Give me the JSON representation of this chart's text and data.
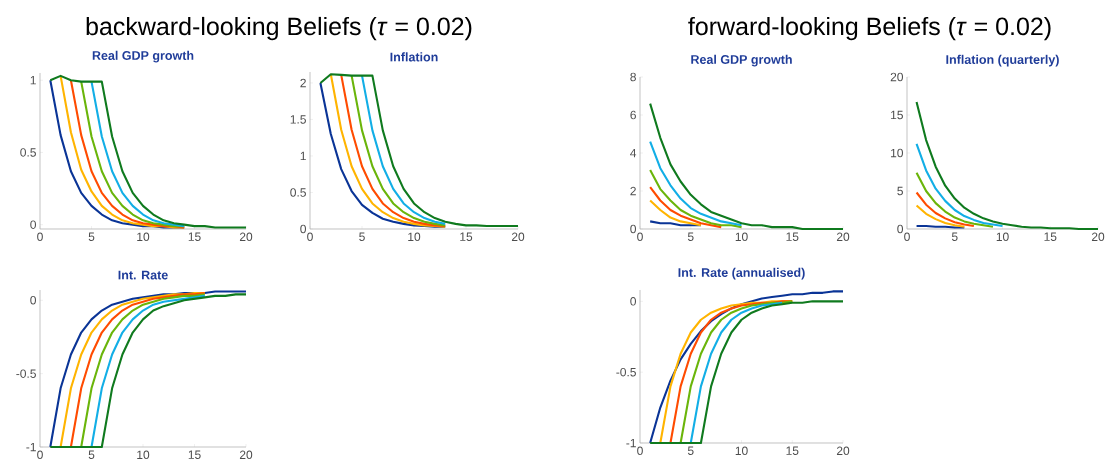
{
  "chart_data": [
    {
      "type": "line",
      "title": "Real GDP growth",
      "annotations": [
        "backward-looking Beliefs (*τ* = 0.02)"
      ],
      "x": [
        1,
        2,
        3,
        4,
        5,
        6,
        7,
        8,
        9,
        10,
        11,
        12,
        13,
        14,
        15,
        16,
        17,
        18,
        19,
        20
      ],
      "xlim": [
        0,
        20
      ],
      "xticks": [
        0,
        5,
        10,
        15,
        20
      ],
      "ylim": [
        -0.03,
        1.05
      ],
      "yticks": [
        0,
        0.5,
        1
      ],
      "series": [
        {
          "color": "#0a3496",
          "values": [
            1,
            0.62,
            0.37,
            0.22,
            0.13,
            0.07,
            0.03,
            0.01,
            0,
            -0.01,
            -0.01,
            -0.02,
            -0.02,
            -0.02,
            null,
            null,
            null,
            null,
            null,
            null
          ]
        },
        {
          "color": "#ffb400",
          "values": [
            null,
            1.03,
            0.64,
            0.38,
            0.23,
            0.13,
            0.07,
            0.03,
            0.01,
            0,
            -0.01,
            -0.01,
            -0.02,
            -0.02,
            null,
            null,
            null,
            null,
            null,
            null
          ]
        },
        {
          "color": "#ff4b00",
          "values": [
            null,
            null,
            1,
            0.62,
            0.37,
            0.22,
            0.13,
            0.07,
            0.03,
            0.01,
            0,
            -0.01,
            -0.01,
            -0.02,
            null,
            null,
            null,
            null,
            null,
            null
          ]
        },
        {
          "color": "#6ab50a",
          "values": [
            null,
            null,
            null,
            0.99,
            0.61,
            0.37,
            0.22,
            0.13,
            0.07,
            0.03,
            0.01,
            0,
            -0.01,
            -0.01,
            null,
            null,
            null,
            null,
            null,
            null
          ]
        },
        {
          "color": "#12aee6",
          "values": [
            null,
            null,
            null,
            null,
            0.99,
            0.61,
            0.37,
            0.22,
            0.13,
            0.07,
            0.03,
            0.01,
            0,
            -0.01,
            null,
            null,
            null,
            null,
            null,
            null
          ]
        },
        {
          "color": "#0f7a1e",
          "values": [
            1,
            1.03,
            1,
            0.99,
            0.99,
            0.99,
            0.61,
            0.37,
            0.22,
            0.13,
            0.07,
            0.03,
            0.01,
            0,
            -0.01,
            -0.01,
            -0.02,
            -0.02,
            -0.02,
            -0.02
          ]
        }
      ]
    },
    {
      "type": "line",
      "title": "Inflation",
      "x": [
        1,
        2,
        3,
        4,
        5,
        6,
        7,
        8,
        9,
        10,
        11,
        12,
        13,
        14,
        15,
        16,
        17,
        18,
        19,
        20
      ],
      "xlim": [
        0,
        20
      ],
      "xticks": [
        0,
        5,
        10,
        15,
        20
      ],
      "ylim": [
        0,
        2.15
      ],
      "yticks": [
        0,
        0.5,
        1,
        1.5,
        2
      ],
      "series": [
        {
          "color": "#0a3496",
          "values": [
            2,
            1.3,
            0.82,
            0.52,
            0.33,
            0.22,
            0.14,
            0.1,
            0.07,
            0.05,
            0.04,
            0.03,
            0.03,
            null,
            null,
            null,
            null,
            null,
            null,
            null
          ]
        },
        {
          "color": "#ffb400",
          "values": [
            null,
            2.12,
            1.36,
            0.86,
            0.55,
            0.35,
            0.23,
            0.15,
            0.1,
            0.07,
            0.05,
            0.04,
            0.03,
            null,
            null,
            null,
            null,
            null,
            null,
            null
          ]
        },
        {
          "color": "#ff4b00",
          "values": [
            null,
            null,
            2.11,
            1.36,
            0.86,
            0.55,
            0.35,
            0.23,
            0.15,
            0.1,
            0.07,
            0.05,
            0.04,
            null,
            null,
            null,
            null,
            null,
            null,
            null
          ]
        },
        {
          "color": "#6ab50a",
          "values": [
            null,
            null,
            null,
            2.1,
            1.35,
            0.86,
            0.55,
            0.35,
            0.23,
            0.15,
            0.1,
            0.07,
            0.05,
            null,
            null,
            null,
            null,
            null,
            null,
            null
          ]
        },
        {
          "color": "#12aee6",
          "values": [
            null,
            null,
            null,
            null,
            2.1,
            1.35,
            0.86,
            0.55,
            0.35,
            0.23,
            0.15,
            0.1,
            0.07,
            null,
            null,
            null,
            null,
            null,
            null,
            null
          ]
        },
        {
          "color": "#0f7a1e",
          "values": [
            2,
            2.12,
            2.11,
            2.1,
            2.1,
            2.1,
            1.35,
            0.86,
            0.55,
            0.35,
            0.23,
            0.15,
            0.1,
            0.07,
            0.05,
            0.05,
            0.04,
            0.04,
            0.04,
            0.04
          ]
        }
      ]
    },
    {
      "type": "line",
      "title": "Int. Rate",
      "x": [
        1,
        2,
        3,
        4,
        5,
        6,
        7,
        8,
        9,
        10,
        11,
        12,
        13,
        14,
        15,
        16,
        17,
        18,
        19,
        20
      ],
      "xlim": [
        0,
        20
      ],
      "xticks": [
        0,
        5,
        10,
        15,
        20
      ],
      "ylim": [
        -1,
        0.07
      ],
      "yticks": [
        -1,
        -0.5,
        0
      ],
      "series": [
        {
          "color": "#0a3496",
          "values": [
            -1,
            -0.6,
            -0.37,
            -0.22,
            -0.13,
            -0.07,
            -0.03,
            -0.01,
            0.01,
            0.02,
            0.03,
            0.04,
            0.04,
            0.05,
            0.05,
            0.05,
            0.06,
            0.06,
            0.06,
            0.06
          ]
        },
        {
          "color": "#ffb400",
          "values": [
            null,
            -1,
            -0.6,
            -0.37,
            -0.22,
            -0.13,
            -0.07,
            -0.03,
            -0.01,
            0.01,
            0.02,
            0.03,
            0.04,
            0.04,
            0.05,
            0.05,
            null,
            null,
            null,
            null
          ]
        },
        {
          "color": "#ff4b00",
          "values": [
            null,
            null,
            -1,
            -0.6,
            -0.37,
            -0.22,
            -0.13,
            -0.07,
            -0.03,
            -0.01,
            0.01,
            0.02,
            0.03,
            0.04,
            0.04,
            0.05,
            null,
            null,
            null,
            null
          ]
        },
        {
          "color": "#6ab50a",
          "values": [
            null,
            null,
            null,
            -1,
            -0.6,
            -0.37,
            -0.22,
            -0.13,
            -0.07,
            -0.03,
            -0.01,
            0.01,
            0.02,
            0.03,
            0.03,
            0.04,
            null,
            null,
            null,
            null
          ]
        },
        {
          "color": "#12aee6",
          "values": [
            null,
            null,
            null,
            null,
            -1,
            -0.6,
            -0.37,
            -0.22,
            -0.13,
            -0.07,
            -0.03,
            -0.01,
            0,
            0.01,
            0.02,
            0.03,
            null,
            null,
            null,
            null
          ]
        },
        {
          "color": "#0f7a1e",
          "values": [
            -1,
            -1,
            -1,
            -1,
            -1,
            -1,
            -0.6,
            -0.37,
            -0.22,
            -0.13,
            -0.07,
            -0.04,
            -0.02,
            0,
            0.01,
            0.02,
            0.03,
            0.03,
            0.04,
            0.04
          ]
        }
      ]
    },
    {
      "type": "line",
      "title": "Real GDP growth",
      "annotations": [
        "forward-looking Beliefs (*τ* = 0.02)"
      ],
      "x": [
        1,
        2,
        3,
        4,
        5,
        6,
        7,
        8,
        9,
        10,
        11,
        12,
        13,
        14,
        15,
        16,
        17,
        18,
        19,
        20
      ],
      "xlim": [
        0,
        20
      ],
      "xticks": [
        0,
        5,
        10,
        15,
        20
      ],
      "ylim": [
        0,
        8
      ],
      "yticks": [
        0,
        2,
        4,
        6,
        8
      ],
      "series": [
        {
          "color": "#0a3496",
          "values": [
            0.4,
            0.3,
            0.3,
            0.2,
            0.2,
            0.2,
            null,
            null,
            null,
            null,
            null,
            null,
            null,
            null,
            null,
            null,
            null,
            null,
            null,
            null
          ]
        },
        {
          "color": "#ffb400",
          "values": [
            1.5,
            1,
            0.6,
            0.4,
            0.3,
            0.2,
            null,
            null,
            null,
            null,
            null,
            null,
            null,
            null,
            null,
            null,
            null,
            null,
            null,
            null
          ]
        },
        {
          "color": "#ff4b00",
          "values": [
            2.2,
            1.5,
            1,
            0.7,
            0.5,
            0.3,
            0.2,
            0.1,
            null,
            null,
            null,
            null,
            null,
            null,
            null,
            null,
            null,
            null,
            null,
            null
          ]
        },
        {
          "color": "#6ab50a",
          "values": [
            3.1,
            2.1,
            1.5,
            1,
            0.7,
            0.5,
            0.3,
            0.2,
            0.2,
            0.1,
            null,
            null,
            null,
            null,
            null,
            null,
            null,
            null,
            null,
            null
          ]
        },
        {
          "color": "#12aee6",
          "values": [
            4.6,
            3.2,
            2.3,
            1.6,
            1.1,
            0.8,
            0.6,
            0.4,
            0.3,
            0.2,
            null,
            null,
            null,
            null,
            null,
            null,
            null,
            null,
            null,
            null
          ]
        },
        {
          "color": "#0f7a1e",
          "values": [
            6.6,
            4.8,
            3.4,
            2.5,
            1.8,
            1.3,
            0.9,
            0.7,
            0.5,
            0.3,
            0.2,
            0.2,
            0.1,
            0.1,
            0.1,
            0,
            0,
            0,
            0,
            0
          ]
        }
      ]
    },
    {
      "type": "line",
      "title": "Inflation (quarterly)",
      "x": [
        1,
        2,
        3,
        4,
        5,
        6,
        7,
        8,
        9,
        10,
        11,
        12,
        13,
        14,
        15,
        16,
        17,
        18,
        19,
        20
      ],
      "xlim": [
        0,
        20
      ],
      "xticks": [
        0,
        5,
        10,
        15,
        20
      ],
      "ylim": [
        0,
        20
      ],
      "yticks": [
        0,
        5,
        10,
        15,
        20
      ],
      "series": [
        {
          "color": "#0a3496",
          "values": [
            0.4,
            0.4,
            0.3,
            0.3,
            0.2,
            0.2,
            null,
            null,
            null,
            null,
            null,
            null,
            null,
            null,
            null,
            null,
            null,
            null,
            null,
            null
          ]
        },
        {
          "color": "#ffb400",
          "values": [
            3.1,
            2,
            1.3,
            0.8,
            0.5,
            0.3,
            null,
            null,
            null,
            null,
            null,
            null,
            null,
            null,
            null,
            null,
            null,
            null,
            null,
            null
          ]
        },
        {
          "color": "#ff4b00",
          "values": [
            4.8,
            3.2,
            2.1,
            1.4,
            0.9,
            0.6,
            0.4,
            null,
            null,
            null,
            null,
            null,
            null,
            null,
            null,
            null,
            null,
            null,
            null,
            null
          ]
        },
        {
          "color": "#6ab50a",
          "values": [
            7.4,
            5,
            3.4,
            2.3,
            1.5,
            1,
            0.7,
            0.5,
            0.3,
            null,
            null,
            null,
            null,
            null,
            null,
            null,
            null,
            null,
            null,
            null
          ]
        },
        {
          "color": "#12aee6",
          "values": [
            11.2,
            7.7,
            5.3,
            3.7,
            2.5,
            1.7,
            1.2,
            0.8,
            0.6,
            0.4,
            null,
            null,
            null,
            null,
            null,
            null,
            null,
            null,
            null,
            null
          ]
        },
        {
          "color": "#0f7a1e",
          "values": [
            16.7,
            11.7,
            8.2,
            5.7,
            4,
            2.8,
            2,
            1.4,
            1,
            0.7,
            0.5,
            0.3,
            0.2,
            0.2,
            0.1,
            0.1,
            0.1,
            0,
            0,
            0
          ]
        }
      ]
    },
    {
      "type": "line",
      "title": "Int. Rate (annualised)",
      "x": [
        1,
        2,
        3,
        4,
        5,
        6,
        7,
        8,
        9,
        10,
        11,
        12,
        13,
        14,
        15,
        16,
        17,
        18,
        19,
        20
      ],
      "xlim": [
        0,
        20
      ],
      "xticks": [
        0,
        5,
        10,
        15,
        20
      ],
      "ylim": [
        -1,
        0.08
      ],
      "yticks": [
        -1,
        -0.5,
        0
      ],
      "series": [
        {
          "color": "#0a3496",
          "values": [
            -1,
            -0.75,
            -0.56,
            -0.41,
            -0.3,
            -0.21,
            -0.14,
            -0.09,
            -0.05,
            -0.02,
            0,
            0.02,
            0.03,
            0.04,
            0.05,
            0.05,
            0.06,
            0.06,
            0.07,
            0.07
          ]
        },
        {
          "color": "#ffb400",
          "values": [
            null,
            -1,
            -0.6,
            -0.37,
            -0.22,
            -0.13,
            -0.08,
            -0.05,
            -0.03,
            -0.02,
            -0.01,
            -0.01,
            0,
            0,
            0,
            null,
            null,
            null,
            null,
            null
          ]
        },
        {
          "color": "#ff4b00",
          "values": [
            null,
            null,
            -1,
            -0.6,
            -0.37,
            -0.22,
            -0.13,
            -0.08,
            -0.05,
            -0.03,
            -0.02,
            -0.01,
            -0.01,
            0,
            0,
            null,
            null,
            null,
            null,
            null
          ]
        },
        {
          "color": "#6ab50a",
          "values": [
            null,
            null,
            null,
            -1,
            -0.6,
            -0.37,
            -0.22,
            -0.13,
            -0.08,
            -0.05,
            -0.03,
            -0.02,
            -0.01,
            -0.01,
            0,
            null,
            null,
            null,
            null,
            null
          ]
        },
        {
          "color": "#12aee6",
          "values": [
            null,
            null,
            null,
            null,
            -1,
            -0.6,
            -0.37,
            -0.22,
            -0.13,
            -0.08,
            -0.05,
            -0.03,
            -0.02,
            -0.01,
            null,
            null,
            null,
            null,
            null,
            null
          ]
        },
        {
          "color": "#0f7a1e",
          "values": [
            -1,
            -1,
            -1,
            -1,
            -1,
            -1,
            -0.6,
            -0.37,
            -0.22,
            -0.13,
            -0.08,
            -0.05,
            -0.03,
            -0.02,
            -0.01,
            -0.01,
            0,
            0,
            0,
            0
          ]
        }
      ]
    }
  ]
}
